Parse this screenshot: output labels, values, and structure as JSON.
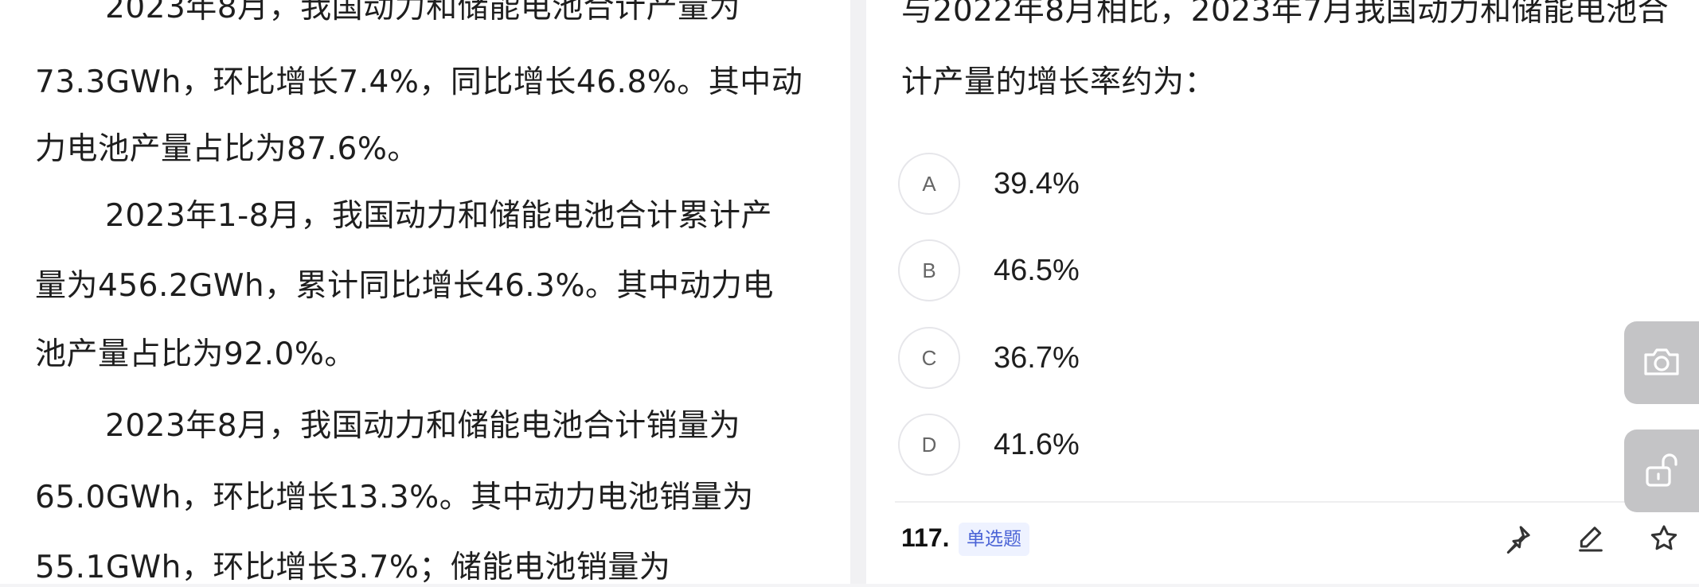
{
  "passage": {
    "lines": [
      "2023年8月，我国动力和储能电池合计产量为",
      "73.3GWh，环比增长7.4%，同比增长46.8%。其中动",
      "力电池产量占比为87.6%。",
      "2023年1-8月，我国动力和储能电池合计累计产",
      "量为456.2GWh，累计同比增长46.3%。其中动力电",
      "池产量占比为92.0%。",
      "2023年8月，我国动力和储能电池合计销量为",
      "65.0GWh，环比增长13.3%。其中动力电池销量为",
      "55.1GWh，环比增长3.7%；储能电池销量为"
    ]
  },
  "question": {
    "stem_lines": [
      "与2022年8月相比，2023年7月我国动力和储能电池合",
      "计产量的增长率约为："
    ],
    "options": [
      {
        "letter": "A",
        "text": "39.4%"
      },
      {
        "letter": "B",
        "text": "46.5%"
      },
      {
        "letter": "C",
        "text": "36.7%"
      },
      {
        "letter": "D",
        "text": "41.6%"
      }
    ]
  },
  "next_question": {
    "number": "117.",
    "type": "单选题"
  },
  "toolbar": {
    "icons": [
      "pin-icon",
      "edit-icon",
      "star-icon"
    ]
  },
  "side_buttons": [
    "camera-icon",
    "unlock-icon"
  ],
  "colors": {
    "accent": "#4a63d6",
    "badge_bg": "#eef2ff",
    "side_button": "#c4c4c6"
  }
}
